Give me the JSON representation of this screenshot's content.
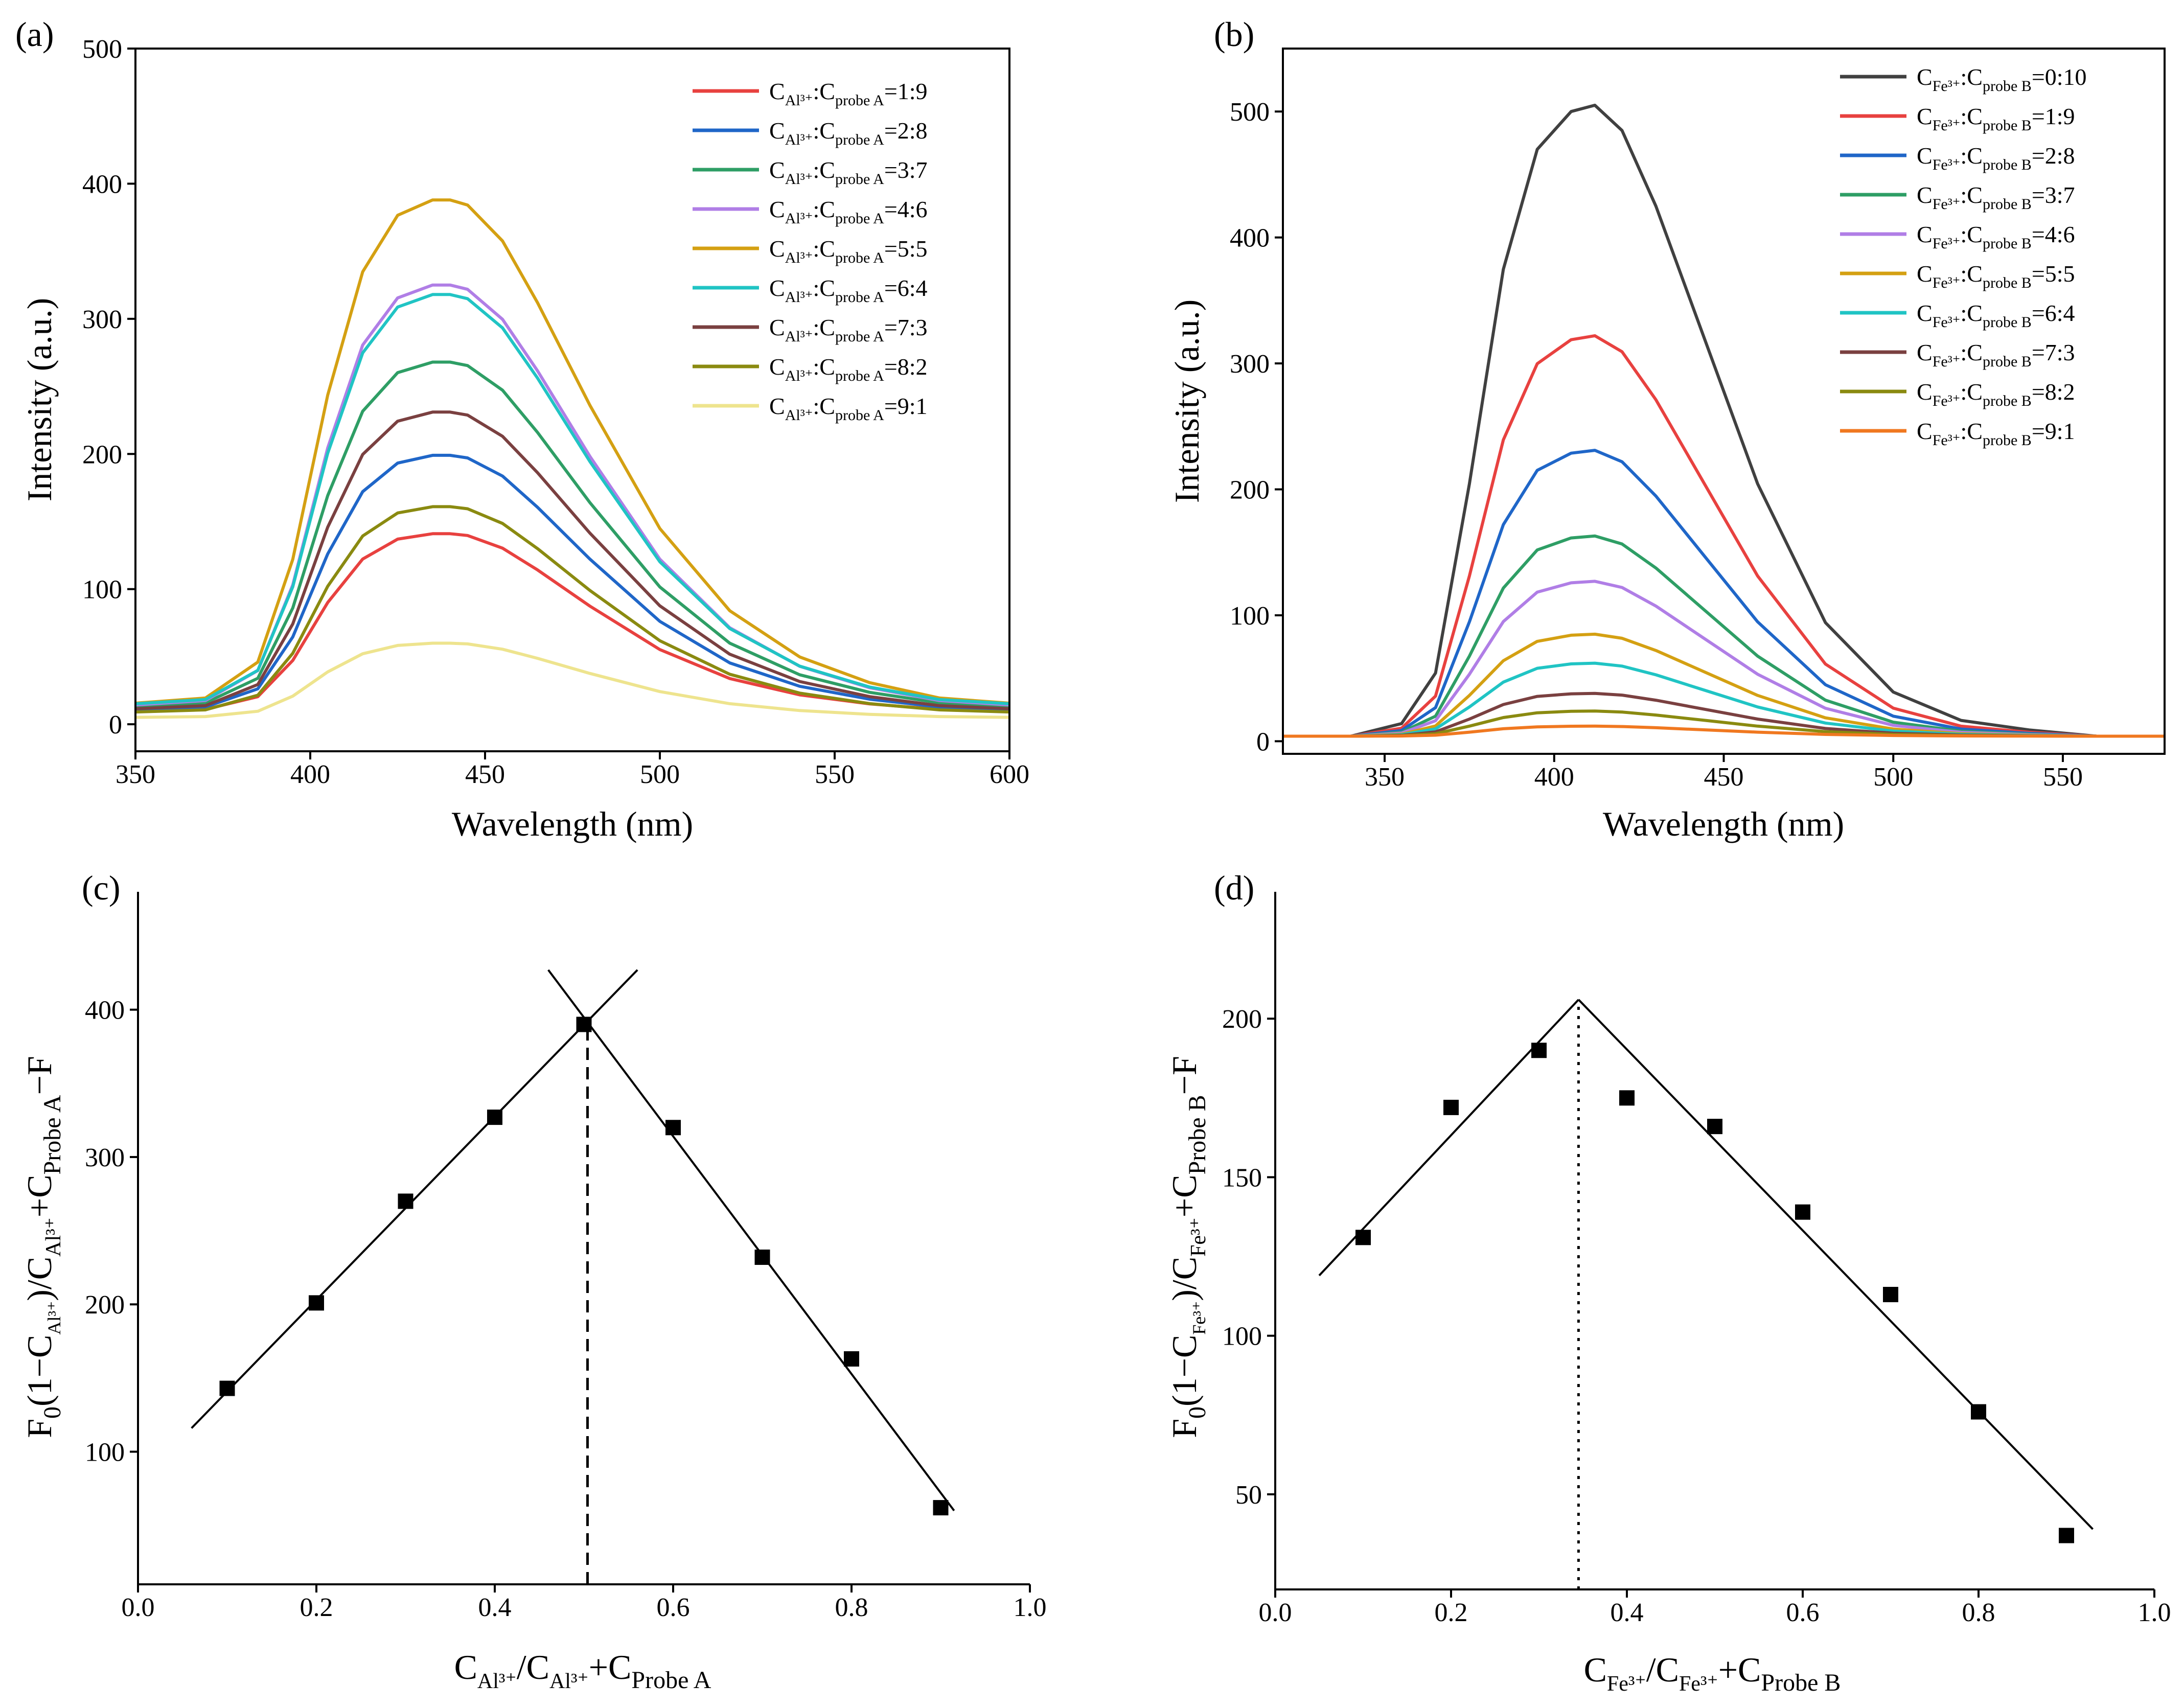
{
  "figure": {
    "panels": [
      "(a)",
      "(b)",
      "(c)",
      "(d)"
    ]
  },
  "chart_data": [
    {
      "id": "a",
      "type": "line",
      "panel_label": "(a)",
      "xlabel": "Wavelength (nm)",
      "ylabel": "Intensity (a.u.)",
      "xlim": [
        350,
        600
      ],
      "ylim": [
        -20,
        500
      ],
      "xticks": [
        350,
        400,
        450,
        500,
        550,
        600
      ],
      "yticks": [
        0,
        100,
        200,
        300,
        400,
        500
      ],
      "x": [
        350,
        370,
        385,
        395,
        405,
        415,
        425,
        435,
        440,
        445,
        455,
        465,
        480,
        500,
        520,
        540,
        560,
        580,
        600
      ],
      "series": [
        {
          "name": "CAl3+:Cprobe A=1:9",
          "legend": {
            "a": "C",
            "b": "Al³⁺",
            "c": ":C",
            "d": "probe A",
            "e": "=1:9"
          },
          "color": "#e8413f",
          "peak": 141,
          "base": 7
        },
        {
          "name": "CAl3+:Cprobe A=2:8",
          "legend": {
            "a": "C",
            "b": "Al³⁺",
            "c": ":C",
            "d": "probe A",
            "e": "=2:8"
          },
          "color": "#1f66c8",
          "peak": 199,
          "base": 7
        },
        {
          "name": "CAl3+:Cprobe A=3:7",
          "legend": {
            "a": "C",
            "b": "Al³⁺",
            "c": ":C",
            "d": "probe A",
            "e": "=3:7"
          },
          "color": "#2e9e65",
          "peak": 268,
          "base": 8
        },
        {
          "name": "CAl3+:Cprobe A=4:6",
          "legend": {
            "a": "C",
            "b": "Al³⁺",
            "c": ":C",
            "d": "probe A",
            "e": "=4:6"
          },
          "color": "#b07ee6",
          "peak": 325,
          "base": 8
        },
        {
          "name": "CAl3+:Cprobe A=5:5",
          "legend": {
            "a": "C",
            "b": "Al³⁺",
            "c": ":C",
            "d": "probe A",
            "e": "=5:5"
          },
          "color": "#d4a012",
          "peak": 388,
          "base": 8
        },
        {
          "name": "CAl3+:Cprobe A=6:4",
          "legend": {
            "a": "C",
            "b": "Al³⁺",
            "c": ":C",
            "d": "probe A",
            "e": "=6:4"
          },
          "color": "#20c4c4",
          "peak": 318,
          "base": 9
        },
        {
          "name": "CAl3+:Cprobe A=7:3",
          "legend": {
            "a": "C",
            "b": "Al³⁺",
            "c": ":C",
            "d": "probe A",
            "e": "=7:3"
          },
          "color": "#7a4040",
          "peak": 231,
          "base": 7
        },
        {
          "name": "CAl3+:Cprobe A=8:2",
          "legend": {
            "a": "C",
            "b": "Al³⁺",
            "c": ":C",
            "d": "probe A",
            "e": "=8:2"
          },
          "color": "#8a8a10",
          "peak": 161,
          "base": 6
        },
        {
          "name": "CAl3+:Cprobe A=9:1",
          "legend": {
            "a": "C",
            "b": "Al³⁺",
            "c": ":C",
            "d": "probe A",
            "e": "=9:1"
          },
          "color": "#eee48e",
          "peak": 60,
          "base": 4
        }
      ],
      "shape": [
        0.02,
        0.03,
        0.1,
        0.3,
        0.62,
        0.86,
        0.97,
        1.0,
        1.0,
        0.99,
        0.92,
        0.8,
        0.6,
        0.36,
        0.2,
        0.11,
        0.06,
        0.03,
        0.02
      ]
    },
    {
      "id": "b",
      "type": "line",
      "panel_label": "(b)",
      "xlabel": "Wavelength (nm)",
      "ylabel": "Intensity (a.u.)",
      "xlim": [
        320,
        580
      ],
      "ylim": [
        -10,
        550
      ],
      "xticks": [
        350,
        400,
        450,
        500,
        550
      ],
      "yticks": [
        0,
        100,
        200,
        300,
        400,
        500
      ],
      "x": [
        320,
        340,
        355,
        365,
        375,
        385,
        395,
        405,
        412,
        420,
        430,
        445,
        460,
        480,
        500,
        520,
        540,
        560,
        580
      ],
      "series": [
        {
          "name": "CFe3+:Cprobe B=0:10",
          "legend": {
            "a": "C",
            "b": "Fe³⁺",
            "c": ":C",
            "d": "probe B",
            "e": "=0:10"
          },
          "color": "#404040",
          "peak": 505,
          "base": 4
        },
        {
          "name": "CFe3+:Cprobe B=1:9",
          "legend": {
            "a": "C",
            "b": "Fe³⁺",
            "c": ":C",
            "d": "probe B",
            "e": "=1:9"
          },
          "color": "#e8413f",
          "peak": 322,
          "base": 4
        },
        {
          "name": "CFe3+:Cprobe B=2:8",
          "legend": {
            "a": "C",
            "b": "Fe³⁺",
            "c": ":C",
            "d": "probe B",
            "e": "=2:8"
          },
          "color": "#1f66c8",
          "peak": 231,
          "base": 4
        },
        {
          "name": "CFe3+:Cprobe B=3:7",
          "legend": {
            "a": "C",
            "b": "Fe³⁺",
            "c": ":C",
            "d": "probe B",
            "e": "=3:7"
          },
          "color": "#2e9e65",
          "peak": 163,
          "base": 4
        },
        {
          "name": "CFe3+:Cprobe B=4:6",
          "legend": {
            "a": "C",
            "b": "Fe³⁺",
            "c": ":C",
            "d": "probe B",
            "e": "=4:6"
          },
          "color": "#b07ee6",
          "peak": 127,
          "base": 4
        },
        {
          "name": "CFe3+:Cprobe B=5:5",
          "legend": {
            "a": "C",
            "b": "Fe³⁺",
            "c": ":C",
            "d": "probe B",
            "e": "=5:5"
          },
          "color": "#d4a012",
          "peak": 85,
          "base": 4
        },
        {
          "name": "CFe3+:Cprobe B=6:4",
          "legend": {
            "a": "C",
            "b": "Fe³⁺",
            "c": ":C",
            "d": "probe B",
            "e": "=6:4"
          },
          "color": "#20c4c4",
          "peak": 62,
          "base": 4
        },
        {
          "name": "CFe3+:Cprobe B=7:3",
          "legend": {
            "a": "C",
            "b": "Fe³⁺",
            "c": ":C",
            "d": "probe B",
            "e": "=7:3"
          },
          "color": "#7a4040",
          "peak": 38,
          "base": 4
        },
        {
          "name": "CFe3+:Cprobe B=8:2",
          "legend": {
            "a": "C",
            "b": "Fe³⁺",
            "c": ":C",
            "d": "probe B",
            "e": "=8:2"
          },
          "color": "#8a8a10",
          "peak": 24,
          "base": 4
        },
        {
          "name": "CFe3+:Cprobe B=9:1",
          "legend": {
            "a": "C",
            "b": "Fe³⁺",
            "c": ":C",
            "d": "probe B",
            "e": "=9:1"
          },
          "color": "#f07820",
          "peak": 12,
          "base": 4
        }
      ],
      "shape": [
        0.0,
        0.0,
        0.02,
        0.1,
        0.4,
        0.74,
        0.93,
        0.99,
        1.0,
        0.96,
        0.84,
        0.62,
        0.4,
        0.18,
        0.07,
        0.025,
        0.01,
        0.0,
        0.0
      ]
    },
    {
      "id": "c",
      "type": "scatter",
      "panel_label": "(c)",
      "xlim": [
        0.0,
        1.0
      ],
      "ylim": [
        10,
        480
      ],
      "xticks": [
        0.0,
        0.2,
        0.4,
        0.6,
        0.8,
        1.0
      ],
      "xtick_labels": [
        "0.0",
        "0.2",
        "0.4",
        "0.6",
        "0.8",
        "1.0"
      ],
      "yticks": [
        100,
        200,
        300,
        400
      ],
      "xlabel": {
        "a": "C",
        "b": "Al³⁺",
        "c": "/C",
        "d": "Al³⁺",
        "e": "+C",
        "f": "Probe A"
      },
      "ylabel": {
        "a": "F",
        "b": "0",
        "c": "(1−C",
        "d": "Al³⁺",
        "e": ")/C",
        "f": "Al³⁺",
        "g": "+C",
        "h": "Probe A",
        "i": "−F"
      },
      "x": [
        0.1,
        0.2,
        0.3,
        0.4,
        0.5,
        0.6,
        0.7,
        0.8,
        0.9
      ],
      "y": [
        143,
        201,
        270,
        327,
        390,
        320,
        232,
        163,
        62
      ],
      "fit_lines": [
        {
          "x": [
            0.06,
            0.56
          ],
          "y": [
            116,
            427
          ]
        },
        {
          "x": [
            0.46,
            0.915
          ],
          "y": [
            427,
            60
          ]
        }
      ],
      "vline": {
        "x": 0.504,
        "y": [
          10,
          392
        ],
        "style": "dashed"
      }
    },
    {
      "id": "d",
      "type": "scatter",
      "panel_label": "(d)",
      "xlim": [
        0.0,
        1.0
      ],
      "ylim": [
        20,
        240
      ],
      "xticks": [
        0.0,
        0.2,
        0.4,
        0.6,
        0.8,
        1.0
      ],
      "xtick_labels": [
        "0.0",
        "0.2",
        "0.4",
        "0.6",
        "0.8",
        "1.0"
      ],
      "yticks": [
        50,
        100,
        150,
        200
      ],
      "xlabel": {
        "a": "C",
        "b": "Fe³⁺",
        "c": "/C",
        "d": "Fe³⁺",
        "e": "+C",
        "f": "Probe B"
      },
      "ylabel": {
        "a": "F",
        "b": "0",
        "c": "(1−C",
        "d": "Fe³⁺",
        "e": ")/C",
        "f": "Fe³⁺",
        "g": "+C",
        "h": "Probe B",
        "i": "−F"
      },
      "x": [
        0.1,
        0.2,
        0.3,
        0.4,
        0.5,
        0.6,
        0.7,
        0.8,
        0.9
      ],
      "y": [
        131,
        172,
        190,
        175,
        166,
        139,
        113,
        76,
        37
      ],
      "fit_lines": [
        {
          "x": [
            0.05,
            0.345
          ],
          "y": [
            119,
            206
          ]
        },
        {
          "x": [
            0.345,
            0.93
          ],
          "y": [
            206,
            39
          ]
        }
      ],
      "vline": {
        "x": 0.345,
        "y": [
          20,
          206
        ],
        "style": "dotted"
      }
    }
  ]
}
